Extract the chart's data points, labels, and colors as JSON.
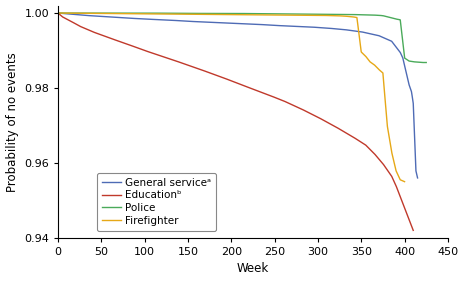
{
  "xlabel": "Week",
  "ylabel": "Probability of no events",
  "xlim": [
    0,
    450
  ],
  "ylim": [
    0.94,
    1.002
  ],
  "yticks": [
    0.94,
    0.96,
    0.98,
    1.0
  ],
  "xticks": [
    0,
    50,
    100,
    150,
    200,
    250,
    300,
    350,
    400,
    450
  ],
  "colors": {
    "general": "#4e6bb5",
    "education": "#c0392b",
    "police": "#4aaa5a",
    "firefighter": "#e6a817"
  },
  "legend_labels": [
    "General serviceᵃ",
    "Educationᵇ",
    "Police",
    "Firefighter"
  ],
  "figsize": [
    4.64,
    2.81
  ],
  "dpi": 100,
  "general_x": [
    0,
    10,
    20,
    30,
    50,
    70,
    100,
    130,
    150,
    180,
    200,
    230,
    250,
    270,
    290,
    310,
    320,
    330,
    340,
    350,
    360,
    370,
    375,
    380,
    385,
    390,
    395,
    398,
    400,
    403,
    405,
    408,
    410,
    413,
    415
  ],
  "general_y": [
    1.0,
    0.9998,
    0.9996,
    0.9994,
    0.9991,
    0.9988,
    0.9984,
    0.9981,
    0.9978,
    0.9975,
    0.9973,
    0.997,
    0.9967,
    0.9965,
    0.9963,
    0.996,
    0.9958,
    0.9956,
    0.9953,
    0.995,
    0.9945,
    0.994,
    0.9935,
    0.993,
    0.9925,
    0.991,
    0.9895,
    0.988,
    0.986,
    0.983,
    0.981,
    0.979,
    0.976,
    0.958,
    0.956
  ],
  "education_x": [
    0,
    5,
    15,
    25,
    40,
    60,
    80,
    100,
    130,
    160,
    190,
    210,
    240,
    260,
    280,
    300,
    320,
    340,
    355,
    365,
    375,
    385,
    390,
    395,
    400,
    405,
    410
  ],
  "education_y": [
    1.0,
    0.999,
    0.9978,
    0.9965,
    0.995,
    0.9933,
    0.9917,
    0.99,
    0.9877,
    0.9853,
    0.9828,
    0.981,
    0.9784,
    0.9766,
    0.9745,
    0.9722,
    0.9697,
    0.967,
    0.9648,
    0.9625,
    0.9598,
    0.9565,
    0.954,
    0.951,
    0.948,
    0.945,
    0.942
  ],
  "police_x": [
    0,
    50,
    100,
    150,
    200,
    250,
    300,
    340,
    360,
    370,
    375,
    380,
    385,
    390,
    395,
    400,
    405,
    410,
    415,
    420,
    425
  ],
  "police_y": [
    1.0,
    1.0,
    1.0,
    0.9999,
    0.9999,
    0.9998,
    0.9997,
    0.9996,
    0.9995,
    0.9994,
    0.9993,
    0.999,
    0.9987,
    0.9984,
    0.9982,
    0.988,
    0.9872,
    0.987,
    0.9869,
    0.9868,
    0.9868
  ],
  "firefighter_x": [
    0,
    50,
    100,
    150,
    200,
    250,
    300,
    320,
    330,
    335,
    340,
    345,
    350,
    355,
    358,
    360,
    365,
    370,
    375,
    380,
    385,
    390,
    395,
    400
  ],
  "firefighter_y": [
    1.0,
    0.9999,
    0.9998,
    0.9997,
    0.9996,
    0.9995,
    0.9994,
    0.9993,
    0.9992,
    0.9991,
    0.999,
    0.9988,
    0.9896,
    0.9885,
    0.9876,
    0.987,
    0.9862,
    0.985,
    0.984,
    0.97,
    0.963,
    0.958,
    0.9555,
    0.955
  ]
}
